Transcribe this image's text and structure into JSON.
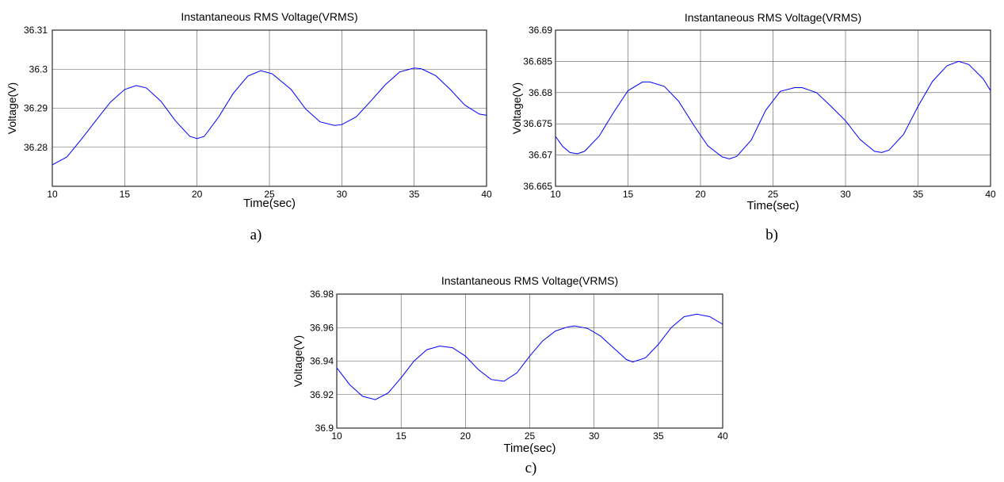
{
  "chart_data": [
    {
      "type": "line",
      "caption": "a)",
      "title": "Instantaneous RMS Voltage(VRMS)",
      "xlabel": "Time(sec)",
      "ylabel": "Voltage(V)",
      "xlim": [
        10,
        40
      ],
      "ylim": [
        36.27,
        36.31
      ],
      "xticks": [
        "10",
        "15",
        "20",
        "25",
        "30",
        "35",
        "40"
      ],
      "yticks": [
        "36.28",
        "36.29",
        "36.3",
        "36.31"
      ],
      "grid": true,
      "line_color": "#0000ff",
      "series": [
        {
          "x": [
            10,
            11,
            12,
            13,
            14,
            15,
            15.8,
            16.5,
            17.5,
            18.5,
            19.5,
            20,
            20.5,
            21.5,
            22.5,
            23.5,
            24.4,
            25.2,
            26.5,
            27.5,
            28.5,
            29.5,
            30,
            31,
            32,
            33,
            34,
            35,
            35.5,
            36.5,
            37.5,
            38.5,
            39.5,
            40
          ],
          "y": [
            36.2755,
            36.2775,
            36.282,
            36.2868,
            36.2915,
            36.2948,
            36.2958,
            36.2952,
            36.2918,
            36.2868,
            36.2828,
            36.2822,
            36.2828,
            36.2878,
            36.2938,
            36.2982,
            36.2996,
            36.2988,
            36.2948,
            36.2898,
            36.2865,
            36.2856,
            36.2858,
            36.2878,
            36.2918,
            36.296,
            36.2993,
            36.3003,
            36.3001,
            36.2983,
            36.2948,
            36.2908,
            36.2885,
            36.2882
          ]
        }
      ]
    },
    {
      "type": "line",
      "caption": "b)",
      "title": "Instantaneous RMS Voltage(VRMS)",
      "xlabel": "Time(sec)",
      "ylabel": "Voltage(V)",
      "xlim": [
        10,
        40
      ],
      "ylim": [
        36.665,
        36.69
      ],
      "xticks": [
        "10",
        "15",
        "20",
        "25",
        "30",
        "35",
        "40"
      ],
      "yticks": [
        "36.665",
        "36.67",
        "36.675",
        "36.68",
        "36.685",
        "36.69"
      ],
      "grid": true,
      "line_color": "#0000ff",
      "series": [
        {
          "x": [
            10,
            10.5,
            11,
            11.5,
            12,
            13,
            14,
            15,
            16,
            16.5,
            17.5,
            18.5,
            19.5,
            20.5,
            21.5,
            22,
            22.5,
            23.5,
            24.5,
            25.5,
            26.5,
            27,
            28,
            29,
            30,
            31,
            32,
            32.5,
            33,
            34,
            35,
            36,
            37,
            37.8,
            38.5,
            39.5,
            40
          ],
          "y": [
            36.673,
            36.6714,
            36.6704,
            36.6702,
            36.6706,
            36.673,
            36.6768,
            36.6803,
            36.6817,
            36.6817,
            36.681,
            36.6786,
            36.6749,
            36.6715,
            36.6697,
            36.6694,
            36.6698,
            36.6724,
            36.6772,
            36.6802,
            36.6808,
            36.6808,
            36.68,
            36.6778,
            36.6755,
            36.6725,
            36.6706,
            36.6704,
            36.6708,
            36.6733,
            36.6778,
            36.6818,
            36.6843,
            36.685,
            36.6845,
            36.6822,
            36.6803
          ]
        }
      ]
    },
    {
      "type": "line",
      "caption": "c)",
      "title": "Instantaneous RMS Voltage(VRMS)",
      "xlabel": "Time(sec)",
      "ylabel": "Voltage(V)",
      "xlim": [
        10,
        40
      ],
      "ylim": [
        36.9,
        36.98
      ],
      "xticks": [
        "10",
        "15",
        "20",
        "25",
        "30",
        "35",
        "40"
      ],
      "yticks": [
        "36.9",
        "36.92",
        "36.94",
        "36.96",
        "36.98"
      ],
      "grid": true,
      "line_color": "#0000ff",
      "series": [
        {
          "x": [
            10,
            11,
            12,
            13,
            14,
            15,
            16,
            17,
            18,
            19,
            20,
            21,
            22,
            23,
            24,
            25,
            26,
            27,
            28,
            28.5,
            29.5,
            30.5,
            31.5,
            32.5,
            33,
            34,
            35,
            36,
            37,
            38,
            39,
            40
          ],
          "y": [
            36.936,
            36.926,
            36.919,
            36.917,
            36.921,
            36.93,
            36.94,
            36.9468,
            36.949,
            36.948,
            36.943,
            36.935,
            36.929,
            36.928,
            36.933,
            36.943,
            36.952,
            36.958,
            36.9605,
            36.961,
            36.9595,
            36.955,
            36.948,
            36.941,
            36.9395,
            36.942,
            36.95,
            36.96,
            36.9665,
            36.968,
            36.9665,
            36.962
          ]
        }
      ]
    }
  ]
}
